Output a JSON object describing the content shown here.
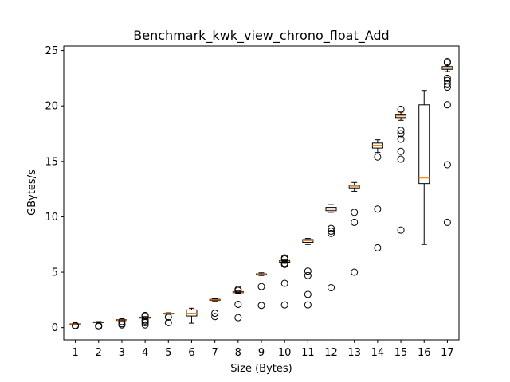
{
  "chart_data": {
    "type": "box",
    "title": "Benchmark_kwk_view_chrono_float_Add",
    "xlabel": "Size (Bytes)",
    "ylabel": "GBytes/s",
    "ylim": [
      -1.1,
      25.4
    ],
    "yticks": [
      0,
      5,
      10,
      15,
      20,
      25
    ],
    "categories": [
      "1",
      "2",
      "3",
      "4",
      "5",
      "6",
      "7",
      "8",
      "9",
      "10",
      "11",
      "12",
      "13",
      "14",
      "15",
      "16",
      "17"
    ],
    "grid": false,
    "colors": {
      "box": "#000000",
      "median": "#ff7f0e",
      "outlier": "#000000"
    },
    "boxes": [
      {
        "label": "1",
        "whislo": 0.3,
        "q1": 0.32,
        "med": 0.33,
        "q3": 0.35,
        "whishi": 0.37,
        "fliers": [
          0.15,
          0.2
        ]
      },
      {
        "label": "2",
        "whislo": 0.45,
        "q1": 0.48,
        "med": 0.5,
        "q3": 0.52,
        "whishi": 0.55,
        "fliers": [
          0.1,
          0.18
        ]
      },
      {
        "label": "3",
        "whislo": 0.62,
        "q1": 0.65,
        "med": 0.68,
        "q3": 0.72,
        "whishi": 0.78,
        "fliers": [
          0.25,
          0.35,
          0.55
        ]
      },
      {
        "label": "4",
        "whislo": 0.82,
        "q1": 0.86,
        "med": 0.9,
        "q3": 0.95,
        "whishi": 1.0,
        "fliers": [
          0.25,
          0.45,
          0.6,
          0.7,
          1.05,
          1.1
        ]
      },
      {
        "label": "5",
        "whislo": 1.2,
        "q1": 1.24,
        "med": 1.27,
        "q3": 1.3,
        "whishi": 1.34,
        "fliers": [
          0.45,
          0.95
        ]
      },
      {
        "label": "6",
        "whislo": 0.4,
        "q1": 1.05,
        "med": 1.3,
        "q3": 1.6,
        "whishi": 1.75,
        "fliers": []
      },
      {
        "label": "7",
        "whislo": 2.4,
        "q1": 2.45,
        "med": 2.5,
        "q3": 2.55,
        "whishi": 2.6,
        "fliers": [
          1.0,
          1.3
        ]
      },
      {
        "label": "8",
        "whislo": 3.1,
        "q1": 3.15,
        "med": 3.2,
        "q3": 3.25,
        "whishi": 3.3,
        "fliers": [
          0.9,
          2.1,
          3.35,
          3.45
        ]
      },
      {
        "label": "9",
        "whislo": 4.7,
        "q1": 4.75,
        "med": 4.8,
        "q3": 4.85,
        "whishi": 4.95,
        "fliers": [
          2.0,
          3.7
        ]
      },
      {
        "label": "10",
        "whislo": 5.8,
        "q1": 5.9,
        "med": 6.0,
        "q3": 6.05,
        "whishi": 6.1,
        "fliers": [
          2.05,
          4.0,
          5.7,
          5.8,
          6.2,
          6.3
        ]
      },
      {
        "label": "11",
        "whislo": 7.5,
        "q1": 7.7,
        "med": 7.85,
        "q3": 7.95,
        "whishi": 8.05,
        "fliers": [
          2.05,
          3.0,
          4.7,
          5.1
        ]
      },
      {
        "label": "12",
        "whislo": 10.4,
        "q1": 10.55,
        "med": 10.7,
        "q3": 10.85,
        "whishi": 11.1,
        "fliers": [
          3.6,
          8.5,
          8.7,
          8.95
        ]
      },
      {
        "label": "13",
        "whislo": 12.3,
        "q1": 12.6,
        "med": 12.75,
        "q3": 12.85,
        "whishi": 13.1,
        "fliers": [
          5.0,
          9.5,
          10.4
        ]
      },
      {
        "label": "14",
        "whislo": 15.8,
        "q1": 16.2,
        "med": 16.45,
        "q3": 16.65,
        "whishi": 16.95,
        "fliers": [
          7.2,
          10.7,
          15.4
        ]
      },
      {
        "label": "15",
        "whislo": 18.7,
        "q1": 18.95,
        "med": 19.1,
        "q3": 19.25,
        "whishi": 19.45,
        "fliers": [
          8.8,
          15.2,
          15.9,
          17.0,
          17.5,
          17.8,
          19.7
        ]
      },
      {
        "label": "16",
        "whislo": 7.5,
        "q1": 13.0,
        "med": 13.5,
        "q3": 20.1,
        "whishi": 21.4,
        "fliers": []
      },
      {
        "label": "17",
        "whislo": 23.1,
        "q1": 23.3,
        "med": 23.4,
        "q3": 23.55,
        "whishi": 23.75,
        "fliers": [
          9.5,
          14.7,
          20.1,
          21.7,
          22.0,
          22.3,
          22.5,
          23.9,
          24.0
        ]
      }
    ]
  }
}
